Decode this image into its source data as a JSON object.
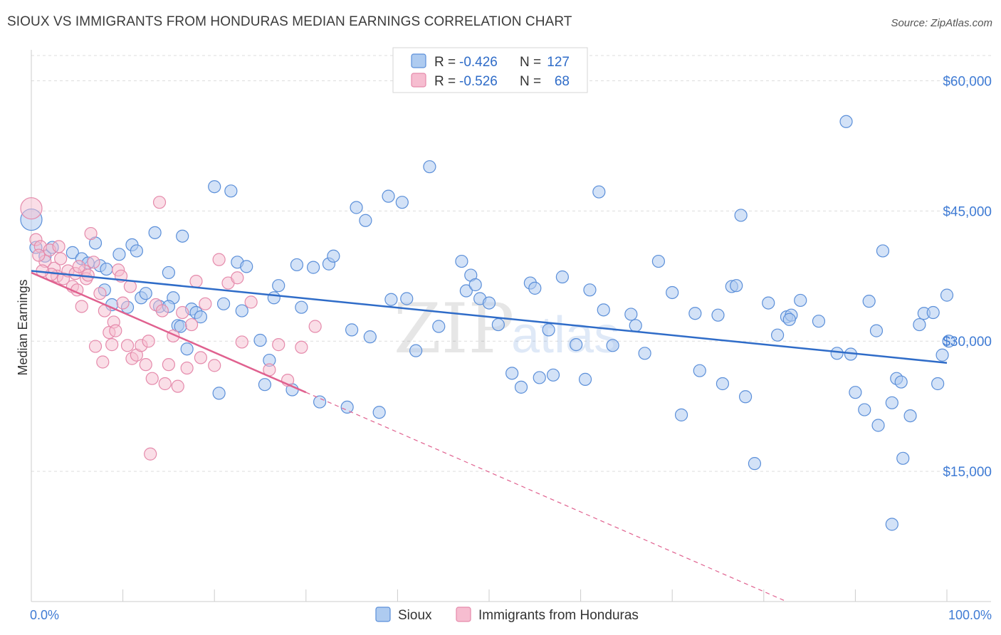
{
  "title": "SIOUX VS IMMIGRANTS FROM HONDURAS MEDIAN EARNINGS CORRELATION CHART",
  "source": "Source: ZipAtlas.com",
  "watermark": {
    "zip": "ZIP",
    "atlas": "atlas"
  },
  "colors": {
    "sioux_fill": "#aecbf0",
    "sioux_stroke": "#5b8fd9",
    "sioux_line": "#2f6cc8",
    "honduras_fill": "#f6bdd0",
    "honduras_stroke": "#e58aab",
    "honduras_line": "#e0618f",
    "grid": "#dddddd",
    "axis_text": "#3f7bd4"
  },
  "stats_legend": [
    {
      "r_label": "R =",
      "r_value": "-0.426",
      "n_label": "N =",
      "n_value": "127"
    },
    {
      "r_label": "R =",
      "r_value": "-0.526",
      "n_label": "N =",
      "n_value": "68"
    }
  ],
  "chart_data": {
    "type": "scatter",
    "title": "SIOUX VS IMMIGRANTS FROM HONDURAS MEDIAN EARNINGS CORRELATION CHART",
    "xlabel": "",
    "ylabel": "Median Earnings",
    "xlim": [
      0,
      100
    ],
    "ylim": [
      0,
      62500
    ],
    "x_tick_labels": [
      "0.0%",
      "100.0%"
    ],
    "y_ticks": [
      15000,
      30000,
      45000,
      60000
    ],
    "y_tick_labels": [
      "$15,000",
      "$30,000",
      "$45,000",
      "$60,000"
    ],
    "grid": true,
    "legend_position": "bottom-center",
    "series": [
      {
        "name": "Sioux",
        "r": -0.426,
        "n": 127,
        "trend": {
          "x": [
            0,
            100
          ],
          "y": [
            38100,
            27500
          ],
          "dashed_ext": null
        },
        "points": [
          [
            0,
            44000
          ],
          [
            0.5,
            40800
          ],
          [
            1.5,
            39800
          ],
          [
            2.3,
            40800
          ],
          [
            4.5,
            40200
          ],
          [
            5.5,
            39500
          ],
          [
            6.2,
            39000
          ],
          [
            7.0,
            41300
          ],
          [
            7.5,
            38700
          ],
          [
            8.2,
            38300
          ],
          [
            8.0,
            35900
          ],
          [
            8.8,
            34200
          ],
          [
            9.6,
            40000
          ],
          [
            10.5,
            33900
          ],
          [
            11.0,
            41100
          ],
          [
            11.5,
            40400
          ],
          [
            12.0,
            35000
          ],
          [
            12.5,
            35500
          ],
          [
            13.5,
            42500
          ],
          [
            14.0,
            34000
          ],
          [
            15.0,
            37900
          ],
          [
            15.5,
            35000
          ],
          [
            16.0,
            31800
          ],
          [
            16.5,
            42100
          ],
          [
            17.0,
            29100
          ],
          [
            17.5,
            33700
          ],
          [
            18.0,
            33300
          ],
          [
            18.5,
            32800
          ],
          [
            20.0,
            47800
          ],
          [
            20.5,
            24000
          ],
          [
            21.0,
            34300
          ],
          [
            21.8,
            47300
          ],
          [
            22.5,
            39100
          ],
          [
            23.0,
            33500
          ],
          [
            23.5,
            38600
          ],
          [
            25.0,
            30100
          ],
          [
            25.5,
            25000
          ],
          [
            26.0,
            27800
          ],
          [
            26.5,
            35000
          ],
          [
            27.0,
            36400
          ],
          [
            28.5,
            24400
          ],
          [
            29.0,
            38800
          ],
          [
            29.5,
            33900
          ],
          [
            30.8,
            38500
          ],
          [
            31.5,
            23000
          ],
          [
            32.5,
            38900
          ],
          [
            33.0,
            39800
          ],
          [
            34.5,
            22400
          ],
          [
            35.0,
            31300
          ],
          [
            35.5,
            45400
          ],
          [
            36.5,
            43900
          ],
          [
            37.0,
            30500
          ],
          [
            38.0,
            21800
          ],
          [
            39.0,
            46700
          ],
          [
            39.3,
            34800
          ],
          [
            40.5,
            46000
          ],
          [
            41.0,
            34900
          ],
          [
            42.0,
            28900
          ],
          [
            43.5,
            50100
          ],
          [
            44.5,
            31700
          ],
          [
            47.0,
            39200
          ],
          [
            47.5,
            35800
          ],
          [
            48.0,
            37600
          ],
          [
            48.5,
            36500
          ],
          [
            49.0,
            34900
          ],
          [
            50.0,
            34400
          ],
          [
            51.0,
            31900
          ],
          [
            52.5,
            26300
          ],
          [
            53.5,
            24700
          ],
          [
            54.5,
            36700
          ],
          [
            55.0,
            36100
          ],
          [
            55.5,
            25800
          ],
          [
            56.5,
            31300
          ],
          [
            57.0,
            26100
          ],
          [
            58.0,
            37400
          ],
          [
            59.5,
            29600
          ],
          [
            60.5,
            25600
          ],
          [
            61.0,
            35900
          ],
          [
            62.0,
            47200
          ],
          [
            62.5,
            33600
          ],
          [
            63.5,
            29500
          ],
          [
            65.5,
            33100
          ],
          [
            66.0,
            31800
          ],
          [
            67.0,
            28600
          ],
          [
            68.5,
            39200
          ],
          [
            70.0,
            35600
          ],
          [
            71.0,
            21500
          ],
          [
            72.5,
            33200
          ],
          [
            73.0,
            26600
          ],
          [
            75.0,
            33000
          ],
          [
            75.5,
            25100
          ],
          [
            76.5,
            36300
          ],
          [
            77.0,
            36400
          ],
          [
            77.5,
            44500
          ],
          [
            78.0,
            23600
          ],
          [
            79.0,
            15900
          ],
          [
            80.5,
            34400
          ],
          [
            81.5,
            30700
          ],
          [
            82.5,
            32800
          ],
          [
            83.0,
            33000
          ],
          [
            84.0,
            34700
          ],
          [
            86.0,
            32300
          ],
          [
            88.0,
            28600
          ],
          [
            89.0,
            55300
          ],
          [
            89.5,
            28500
          ],
          [
            90.0,
            24100
          ],
          [
            91.0,
            22100
          ],
          [
            91.5,
            34600
          ],
          [
            92.5,
            20300
          ],
          [
            93.0,
            40400
          ],
          [
            94.0,
            22900
          ],
          [
            94.5,
            25700
          ],
          [
            95.0,
            25300
          ],
          [
            95.2,
            16500
          ],
          [
            96.0,
            21400
          ],
          [
            97.0,
            31900
          ],
          [
            97.5,
            33200
          ],
          [
            98.5,
            33300
          ],
          [
            99.0,
            25100
          ],
          [
            99.5,
            28400
          ],
          [
            100.0,
            35300
          ],
          [
            100.2,
            30000
          ],
          [
            94.0,
            8900
          ],
          [
            92.3,
            31200
          ],
          [
            82.8,
            32500
          ],
          [
            16.3,
            31700
          ],
          [
            15.0,
            34000
          ]
        ]
      },
      {
        "name": "Immigrants from Honduras",
        "r": -0.526,
        "n": 68,
        "trend": {
          "x": [
            0,
            30
          ],
          "y": [
            37900,
            24100
          ],
          "dashed_ext": {
            "x": [
              30,
              82.5
            ],
            "y": [
              24100,
              0
            ]
          }
        },
        "points": [
          [
            0,
            45300
          ],
          [
            0.5,
            41700
          ],
          [
            1.0,
            40900
          ],
          [
            1.5,
            39200
          ],
          [
            2.0,
            40500
          ],
          [
            2.5,
            38400
          ],
          [
            2.8,
            37500
          ],
          [
            3.0,
            40900
          ],
          [
            3.5,
            37200
          ],
          [
            4.0,
            38100
          ],
          [
            4.5,
            36300
          ],
          [
            5.0,
            35900
          ],
          [
            5.5,
            34000
          ],
          [
            5.8,
            38100
          ],
          [
            6.0,
            37200
          ],
          [
            6.5,
            42400
          ],
          [
            6.8,
            39100
          ],
          [
            7.0,
            29400
          ],
          [
            7.5,
            35500
          ],
          [
            7.8,
            27600
          ],
          [
            8.0,
            33500
          ],
          [
            8.5,
            31000
          ],
          [
            8.8,
            29600
          ],
          [
            9.0,
            32200
          ],
          [
            9.2,
            31200
          ],
          [
            9.5,
            38200
          ],
          [
            9.8,
            37500
          ],
          [
            10.0,
            34400
          ],
          [
            10.5,
            29500
          ],
          [
            10.8,
            36300
          ],
          [
            11.0,
            28000
          ],
          [
            11.5,
            28400
          ],
          [
            12.0,
            29500
          ],
          [
            12.5,
            27300
          ],
          [
            12.8,
            30000
          ],
          [
            13.2,
            25700
          ],
          [
            13.6,
            34200
          ],
          [
            14.0,
            46000
          ],
          [
            14.3,
            33500
          ],
          [
            14.6,
            25100
          ],
          [
            15.0,
            27300
          ],
          [
            15.5,
            30600
          ],
          [
            16.0,
            24800
          ],
          [
            16.5,
            33300
          ],
          [
            17.0,
            26900
          ],
          [
            17.5,
            31900
          ],
          [
            18.0,
            36900
          ],
          [
            18.5,
            28100
          ],
          [
            19.0,
            34300
          ],
          [
            20.0,
            27200
          ],
          [
            20.5,
            39400
          ],
          [
            21.5,
            36700
          ],
          [
            22.5,
            37300
          ],
          [
            23.0,
            29900
          ],
          [
            24.0,
            34500
          ],
          [
            26.0,
            26700
          ],
          [
            27.0,
            29600
          ],
          [
            28.0,
            25500
          ],
          [
            29.5,
            29300
          ],
          [
            31.0,
            31700
          ],
          [
            13.0,
            17000
          ],
          [
            4.8,
            37800
          ],
          [
            3.2,
            39500
          ],
          [
            2.2,
            37700
          ],
          [
            5.2,
            38600
          ],
          [
            6.2,
            37600
          ],
          [
            1.2,
            38100
          ],
          [
            0.8,
            39900
          ]
        ]
      }
    ]
  },
  "bottom_legend": [
    "Sioux",
    "Immigrants from Honduras"
  ]
}
